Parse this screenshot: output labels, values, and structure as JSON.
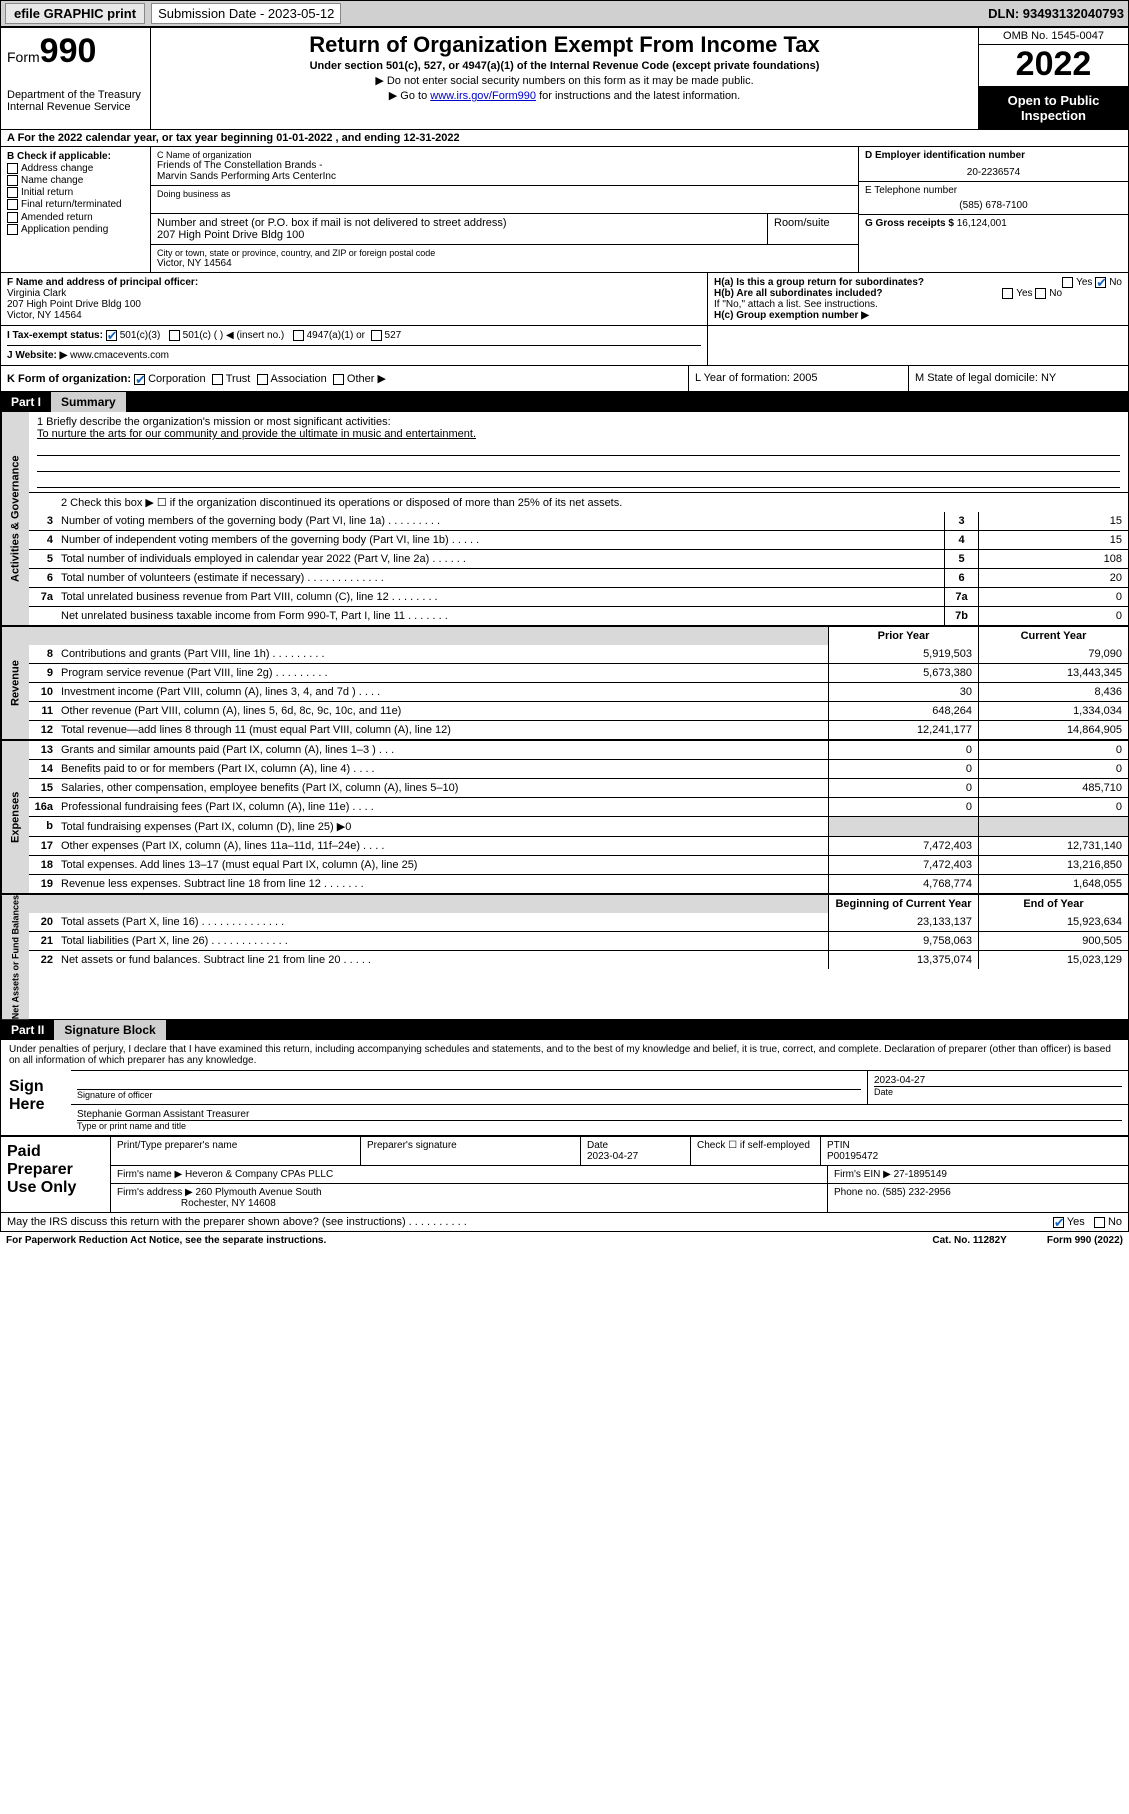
{
  "topbar": {
    "efile": "efile GRAPHIC print",
    "subdate_label": "Submission Date - 2023-05-12",
    "dln": "DLN: 93493132040793"
  },
  "header": {
    "form_label": "Form",
    "form_num": "990",
    "dept": "Department of the Treasury",
    "irs": "Internal Revenue Service",
    "title": "Return of Organization Exempt From Income Tax",
    "subtitle": "Under section 501(c), 527, or 4947(a)(1) of the Internal Revenue Code (except private foundations)",
    "note1": "▶ Do not enter social security numbers on this form as it may be made public.",
    "note2_pre": "▶ Go to ",
    "note2_link": "www.irs.gov/Form990",
    "note2_post": " for instructions and the latest information.",
    "omb": "OMB No. 1545-0047",
    "year": "2022",
    "open": "Open to Public Inspection"
  },
  "rowA": "A For the 2022 calendar year, or tax year beginning 01-01-2022   , and ending 12-31-2022",
  "B": {
    "label": "B Check if applicable:",
    "opts": [
      "Address change",
      "Name change",
      "Initial return",
      "Final return/terminated",
      "Amended return",
      "Application pending"
    ]
  },
  "C": {
    "name_cap": "C Name of organization",
    "name1": "Friends of The Constellation Brands -",
    "name2": "Marvin Sands Performing Arts CenterInc",
    "dba_cap": "Doing business as",
    "street_cap": "Number and street (or P.O. box if mail is not delivered to street address)",
    "street": "207 High Point Drive Bldg 100",
    "suite_cap": "Room/suite",
    "city_cap": "City or town, state or province, country, and ZIP or foreign postal code",
    "city": "Victor, NY  14564"
  },
  "D": {
    "ein_cap": "D Employer identification number",
    "ein": "20-2236574",
    "tel_cap": "E Telephone number",
    "tel": "(585) 678-7100",
    "gross_cap": "G Gross receipts $",
    "gross": "16,124,001"
  },
  "F": {
    "cap": "F Name and address of principal officer:",
    "name": "Virginia Clark",
    "addr1": "207 High Point Drive Bldg 100",
    "addr2": "Victor, NY  14564"
  },
  "H": {
    "a": "H(a)  Is this a group return for subordinates?",
    "a_yes": "Yes",
    "a_no": "No",
    "b": "H(b)  Are all subordinates included?",
    "b_yes": "Yes",
    "b_no": "No",
    "b_note": "If \"No,\" attach a list. See instructions.",
    "c": "H(c)  Group exemption number ▶"
  },
  "I": {
    "label": "I   Tax-exempt status:",
    "o1": "501(c)(3)",
    "o2": "501(c) (  ) ◀ (insert no.)",
    "o3": "4947(a)(1) or",
    "o4": "527"
  },
  "J": {
    "label": "J   Website: ▶",
    "val": "www.cmacevents.com"
  },
  "K": {
    "label": "K Form of organization:",
    "o1": "Corporation",
    "o2": "Trust",
    "o3": "Association",
    "o4": "Other ▶",
    "L": "L Year of formation: 2005",
    "M": "M State of legal domicile: NY"
  },
  "partI": {
    "label": "Part I",
    "title": "Summary"
  },
  "mission": {
    "q": "1  Briefly describe the organization's mission or most significant activities:",
    "a": "To nurture the arts for our community and provide the ultimate in music and entertainment."
  },
  "line2": "2   Check this box ▶ ☐  if the organization discontinued its operations or disposed of more than 25% of its net assets.",
  "gov": {
    "label": "Activities & Governance",
    "rows": [
      {
        "n": "3",
        "d": "Number of voting members of the governing body (Part VI, line 1a)  .  .  .  .  .  .  .  .  .",
        "box": "3",
        "v": "15"
      },
      {
        "n": "4",
        "d": "Number of independent voting members of the governing body (Part VI, line 1b)  .  .  .  .  .",
        "box": "4",
        "v": "15"
      },
      {
        "n": "5",
        "d": "Total number of individuals employed in calendar year 2022 (Part V, line 2a)  .  .  .  .  .  .",
        "box": "5",
        "v": "108"
      },
      {
        "n": "6",
        "d": "Total number of volunteers (estimate if necessary)  .  .  .  .  .  .  .  .  .  .  .  .  .",
        "box": "6",
        "v": "20"
      },
      {
        "n": "7a",
        "d": "Total unrelated business revenue from Part VIII, column (C), line 12  .  .  .  .  .  .  .  .",
        "box": "7a",
        "v": "0"
      },
      {
        "n": "",
        "d": "Net unrelated business taxable income from Form 990-T, Part I, line 11  .  .  .  .  .  .  .",
        "box": "7b",
        "v": "0"
      }
    ]
  },
  "twocol_hdr": {
    "prior": "Prior Year",
    "current": "Current Year"
  },
  "rev": {
    "label": "Revenue",
    "rows": [
      {
        "n": "8",
        "d": "Contributions and grants (Part VIII, line 1h)  .  .  .  .  .  .  .  .  .",
        "p": "5,919,503",
        "c": "79,090"
      },
      {
        "n": "9",
        "d": "Program service revenue (Part VIII, line 2g)  .  .  .  .  .  .  .  .  .",
        "p": "5,673,380",
        "c": "13,443,345"
      },
      {
        "n": "10",
        "d": "Investment income (Part VIII, column (A), lines 3, 4, and 7d )  .  .  .  .",
        "p": "30",
        "c": "8,436"
      },
      {
        "n": "11",
        "d": "Other revenue (Part VIII, column (A), lines 5, 6d, 8c, 9c, 10c, and 11e)",
        "p": "648,264",
        "c": "1,334,034"
      },
      {
        "n": "12",
        "d": "Total revenue—add lines 8 through 11 (must equal Part VIII, column (A), line 12)",
        "p": "12,241,177",
        "c": "14,864,905"
      }
    ]
  },
  "exp": {
    "label": "Expenses",
    "rows": [
      {
        "n": "13",
        "d": "Grants and similar amounts paid (Part IX, column (A), lines 1–3 )  .  .  .",
        "p": "0",
        "c": "0"
      },
      {
        "n": "14",
        "d": "Benefits paid to or for members (Part IX, column (A), line 4)  .  .  .  .",
        "p": "0",
        "c": "0"
      },
      {
        "n": "15",
        "d": "Salaries, other compensation, employee benefits (Part IX, column (A), lines 5–10)",
        "p": "0",
        "c": "485,710"
      },
      {
        "n": "16a",
        "d": "Professional fundraising fees (Part IX, column (A), line 11e)  .  .  .  .",
        "p": "0",
        "c": "0"
      },
      {
        "n": "b",
        "d": "Total fundraising expenses (Part IX, column (D), line 25) ▶0",
        "p": "",
        "c": "",
        "shade": true
      },
      {
        "n": "17",
        "d": "Other expenses (Part IX, column (A), lines 11a–11d, 11f–24e)  .  .  .  .",
        "p": "7,472,403",
        "c": "12,731,140"
      },
      {
        "n": "18",
        "d": "Total expenses. Add lines 13–17 (must equal Part IX, column (A), line 25)",
        "p": "7,472,403",
        "c": "13,216,850"
      },
      {
        "n": "19",
        "d": "Revenue less expenses. Subtract line 18 from line 12  .  .  .  .  .  .  .",
        "p": "4,768,774",
        "c": "1,648,055"
      }
    ]
  },
  "net_hdr": {
    "beg": "Beginning of Current Year",
    "end": "End of Year"
  },
  "net": {
    "label": "Net Assets or Fund Balances",
    "rows": [
      {
        "n": "20",
        "d": "Total assets (Part X, line 16)  .  .  .  .  .  .  .  .  .  .  .  .  .  .",
        "p": "23,133,137",
        "c": "15,923,634"
      },
      {
        "n": "21",
        "d": "Total liabilities (Part X, line 26)  .  .  .  .  .  .  .  .  .  .  .  .  .",
        "p": "9,758,063",
        "c": "900,505"
      },
      {
        "n": "22",
        "d": "Net assets or fund balances. Subtract line 21 from line 20  .  .  .  .  .",
        "p": "13,375,074",
        "c": "15,023,129"
      }
    ]
  },
  "partII": {
    "label": "Part II",
    "title": "Signature Block"
  },
  "sig": {
    "decl": "Under penalties of perjury, I declare that I have examined this return, including accompanying schedules and statements, and to the best of my knowledge and belief, it is true, correct, and complete. Declaration of preparer (other than officer) is based on all information of which preparer has any knowledge.",
    "signhere": "Sign Here",
    "sigoff": "Signature of officer",
    "date": "2023-04-27",
    "date_lbl": "Date",
    "name": "Stephanie Gorman  Assistant Treasurer",
    "name_lbl": "Type or print name and title"
  },
  "paid": {
    "label": "Paid Preparer Use Only",
    "h1": "Print/Type preparer's name",
    "h2": "Preparer's signature",
    "h3": "Date",
    "h3v": "2023-04-27",
    "h4": "Check ☐ if self-employed",
    "h5": "PTIN",
    "h5v": "P00195472",
    "firm_lbl": "Firm's name    ▶",
    "firm": "Heveron & Company CPAs PLLC",
    "ein_lbl": "Firm's EIN ▶",
    "ein": "27-1895149",
    "addr_lbl": "Firm's address ▶",
    "addr1": "260 Plymouth Avenue South",
    "addr2": "Rochester, NY  14608",
    "phone_lbl": "Phone no.",
    "phone": "(585) 232-2956"
  },
  "discuss": {
    "q": "May the IRS discuss this return with the preparer shown above? (see instructions)  .  .  .  .  .  .  .  .  .  .",
    "yes": "Yes",
    "no": "No"
  },
  "footer": {
    "l": "For Paperwork Reduction Act Notice, see the separate instructions.",
    "m": "Cat. No. 11282Y",
    "r": "Form 990 (2022)"
  }
}
